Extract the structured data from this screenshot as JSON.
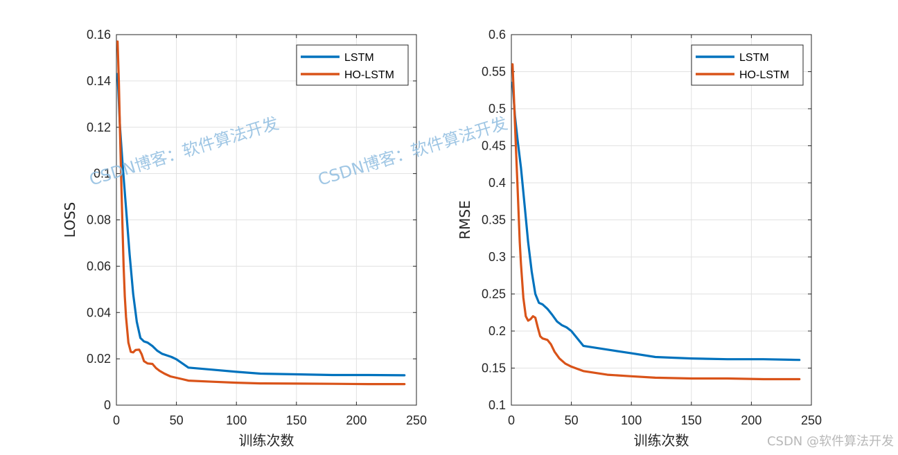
{
  "watermark": {
    "text1": "CSDN博客：软件算法开发",
    "text2": "CSDN博客：软件算法开发",
    "credit": "CSDN @软件算法开发"
  },
  "chart_data": [
    {
      "type": "line",
      "title": "",
      "xlabel": "训练次数",
      "ylabel": "LOSS",
      "xlim": [
        0,
        250
      ],
      "ylim": [
        0,
        0.16
      ],
      "xticks": [
        0,
        50,
        100,
        150,
        200,
        250
      ],
      "yticks": [
        0,
        0.02,
        0.04,
        0.06,
        0.08,
        0.1,
        0.12,
        0.14,
        0.16
      ],
      "ytick_labels": [
        "0",
        "0.02",
        "0.04",
        "0.06",
        "0.08",
        "0.1",
        "0.12",
        "0.14",
        "0.16"
      ],
      "xtick_labels": [
        "0",
        "50",
        "100",
        "150",
        "200",
        "250"
      ],
      "grid": true,
      "legend": "top-right",
      "series": [
        {
          "name": "LSTM",
          "color": "#0072bd",
          "x": [
            1,
            3,
            5,
            8,
            11,
            14,
            17,
            20,
            23,
            26,
            30,
            34,
            38,
            42,
            46,
            50,
            55,
            60,
            80,
            100,
            120,
            150,
            180,
            210,
            240
          ],
          "y": [
            0.143,
            0.12,
            0.105,
            0.085,
            0.065,
            0.048,
            0.036,
            0.029,
            0.0275,
            0.027,
            0.0255,
            0.0235,
            0.0222,
            0.0215,
            0.0208,
            0.0198,
            0.018,
            0.0162,
            0.0153,
            0.0144,
            0.0136,
            0.0133,
            0.013,
            0.013,
            0.0129
          ]
        },
        {
          "name": "HO-LSTM",
          "color": "#d95319",
          "x": [
            1,
            2,
            3,
            4,
            5,
            6,
            7,
            8,
            10,
            12,
            14,
            16,
            19,
            21,
            23,
            26,
            30,
            33,
            36,
            40,
            45,
            50,
            55,
            60,
            80,
            100,
            120,
            150,
            180,
            210,
            240
          ],
          "y": [
            0.157,
            0.14,
            0.118,
            0.098,
            0.078,
            0.06,
            0.047,
            0.038,
            0.027,
            0.023,
            0.0228,
            0.0238,
            0.024,
            0.022,
            0.019,
            0.018,
            0.0178,
            0.016,
            0.0148,
            0.0136,
            0.0124,
            0.0118,
            0.0112,
            0.0106,
            0.0101,
            0.0097,
            0.0094,
            0.0093,
            0.0092,
            0.0091,
            0.0091
          ]
        }
      ]
    },
    {
      "type": "line",
      "title": "",
      "xlabel": "训练次数",
      "ylabel": "RMSE",
      "xlim": [
        0,
        250
      ],
      "ylim": [
        0.1,
        0.6
      ],
      "xticks": [
        0,
        50,
        100,
        150,
        200,
        250
      ],
      "yticks": [
        0.1,
        0.15,
        0.2,
        0.25,
        0.3,
        0.35,
        0.4,
        0.45,
        0.5,
        0.55,
        0.6
      ],
      "ytick_labels": [
        "0.1",
        "0.15",
        "0.2",
        "0.25",
        "0.3",
        "0.35",
        "0.4",
        "0.45",
        "0.5",
        "0.55",
        "0.6"
      ],
      "xtick_labels": [
        "0",
        "50",
        "100",
        "150",
        "200",
        "250"
      ],
      "grid": true,
      "legend": "top-right",
      "series": [
        {
          "name": "LSTM",
          "color": "#0072bd",
          "x": [
            1,
            3,
            5,
            8,
            11,
            14,
            17,
            20,
            23,
            26,
            30,
            34,
            38,
            42,
            46,
            50,
            55,
            60,
            80,
            100,
            120,
            150,
            180,
            210,
            240
          ],
          "y": [
            0.535,
            0.49,
            0.46,
            0.42,
            0.37,
            0.32,
            0.28,
            0.25,
            0.238,
            0.236,
            0.23,
            0.222,
            0.213,
            0.208,
            0.205,
            0.2,
            0.19,
            0.18,
            0.175,
            0.17,
            0.165,
            0.163,
            0.162,
            0.162,
            0.161
          ]
        },
        {
          "name": "HO-LSTM",
          "color": "#d95319",
          "x": [
            1,
            2,
            3,
            4,
            5,
            6,
            7,
            8,
            10,
            12,
            14,
            16,
            18,
            20,
            22,
            24,
            26,
            30,
            33,
            36,
            40,
            45,
            50,
            55,
            60,
            80,
            100,
            120,
            150,
            180,
            210,
            240
          ],
          "y": [
            0.56,
            0.52,
            0.48,
            0.44,
            0.4,
            0.36,
            0.32,
            0.29,
            0.245,
            0.22,
            0.214,
            0.216,
            0.22,
            0.218,
            0.205,
            0.193,
            0.19,
            0.188,
            0.182,
            0.172,
            0.163,
            0.156,
            0.152,
            0.149,
            0.146,
            0.141,
            0.139,
            0.137,
            0.136,
            0.136,
            0.135,
            0.135
          ]
        }
      ]
    }
  ]
}
